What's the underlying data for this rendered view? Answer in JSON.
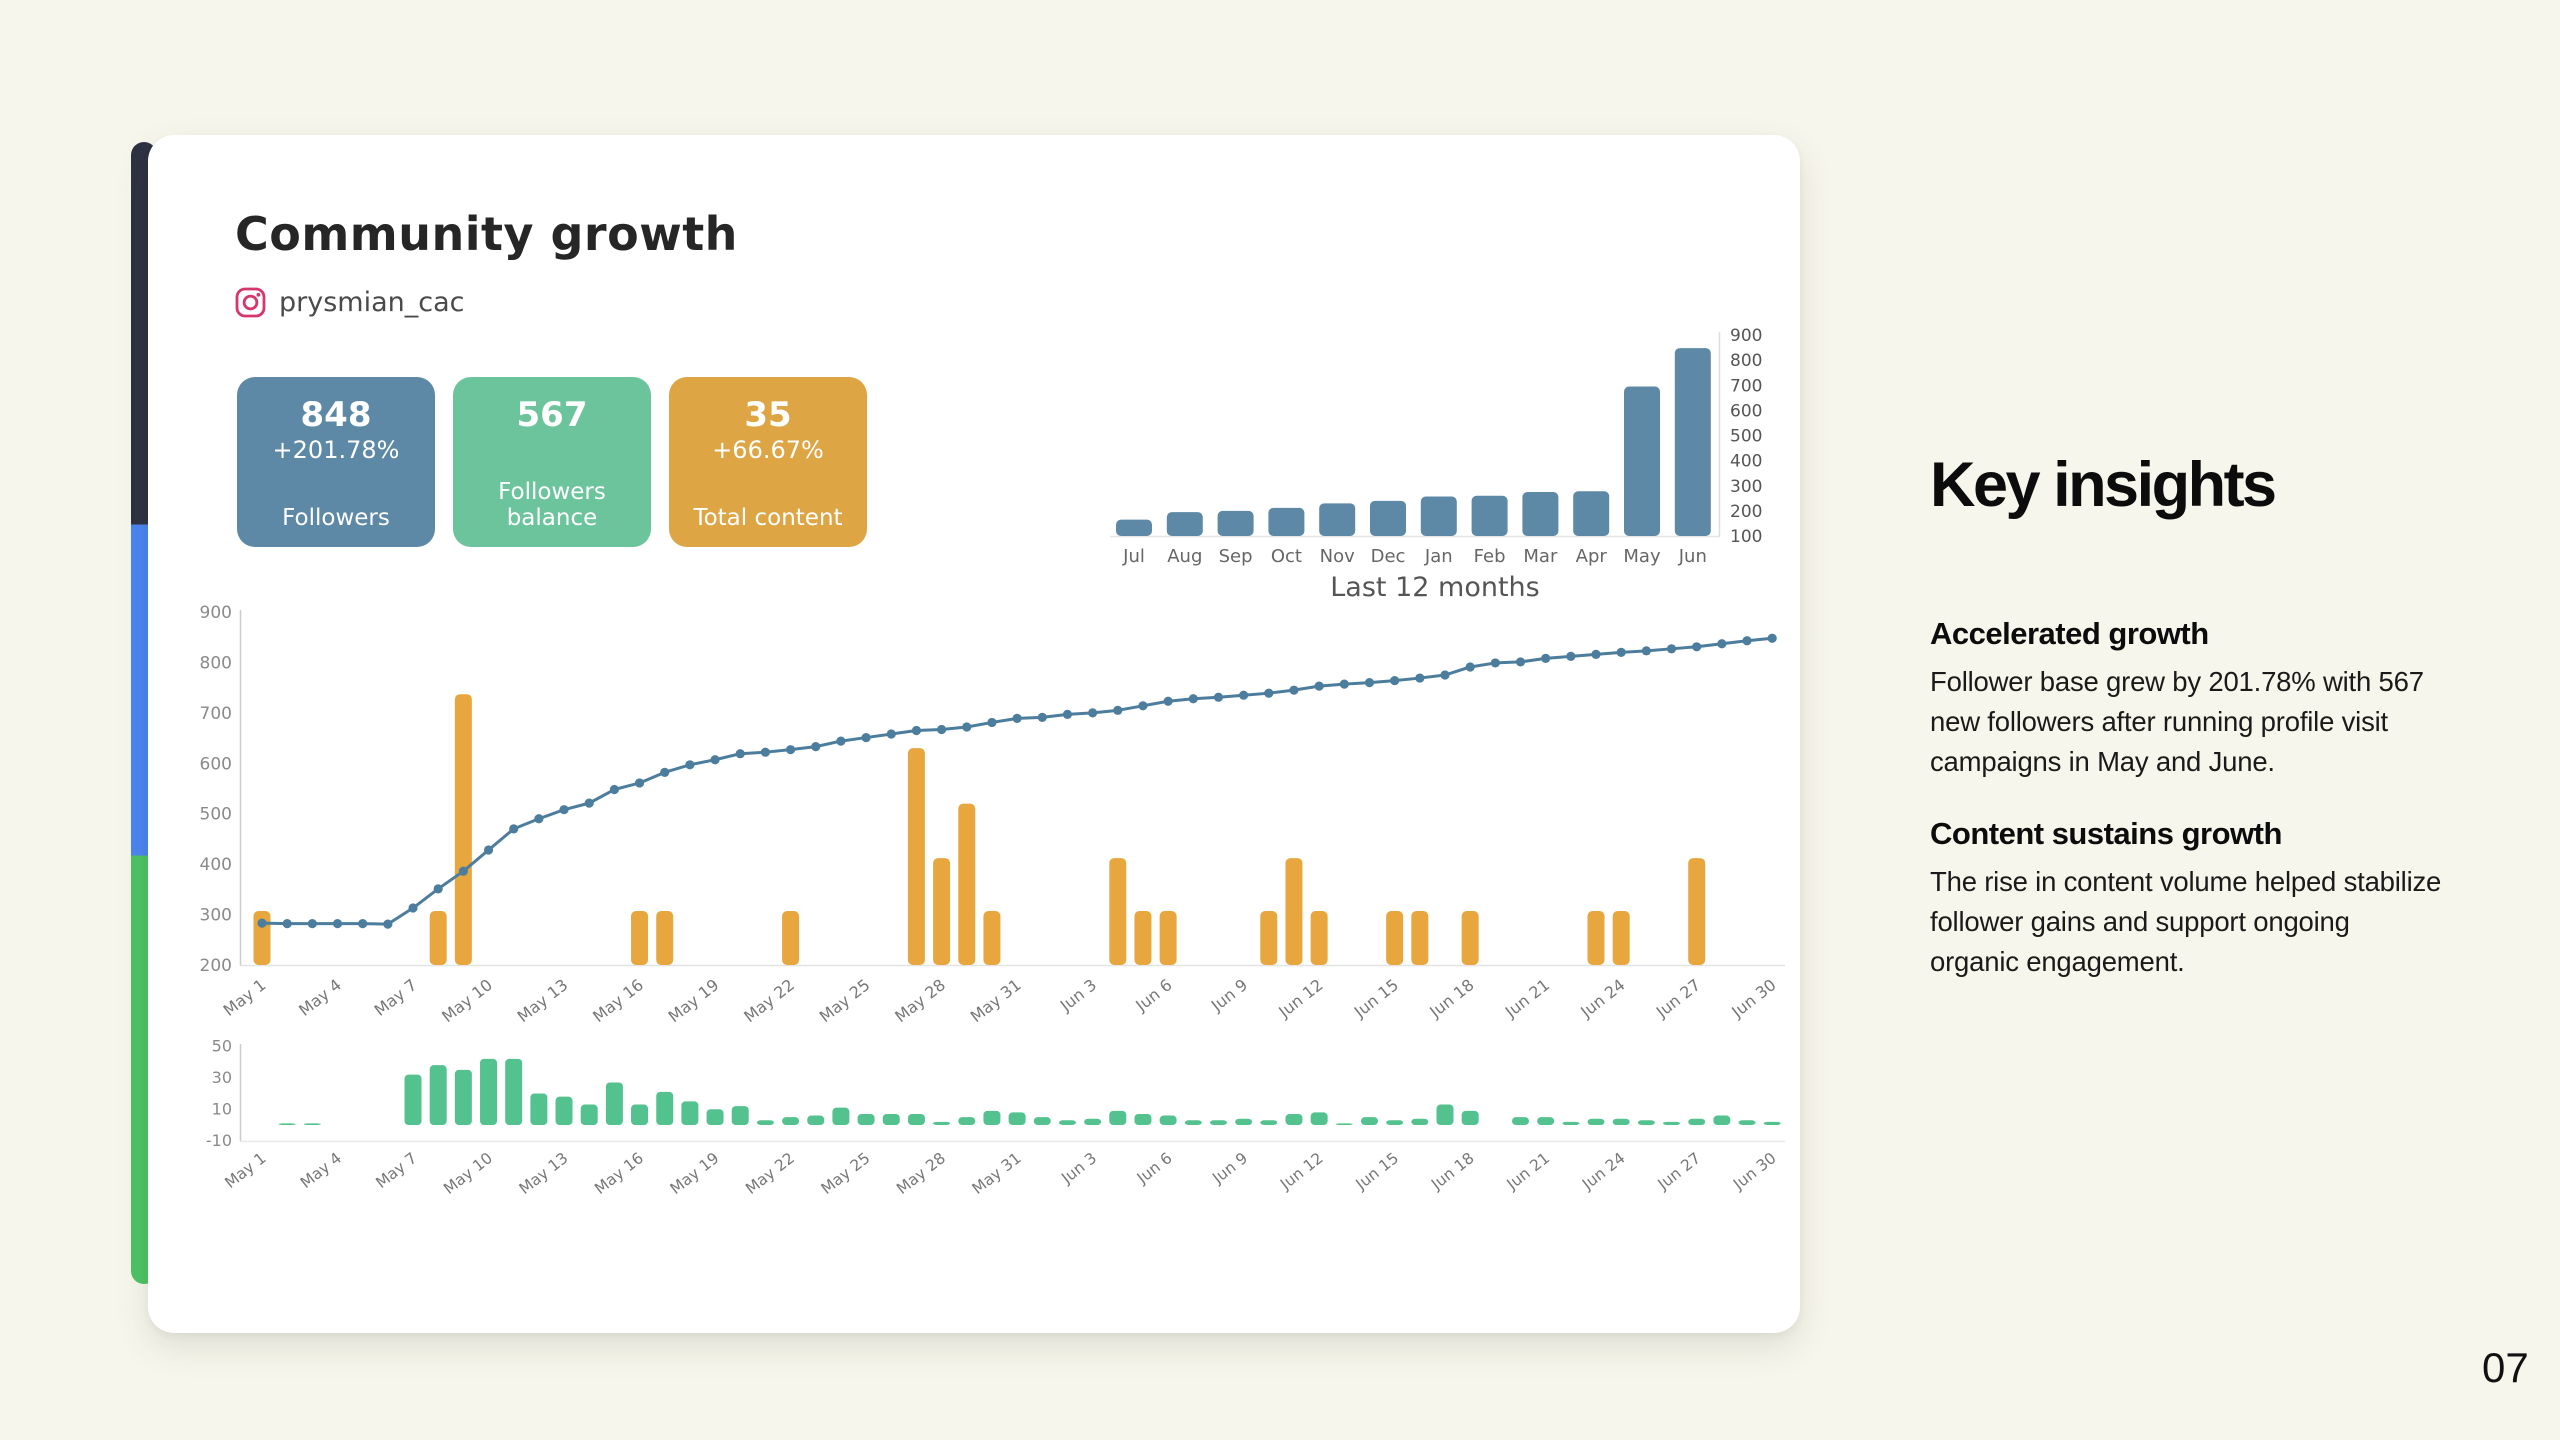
{
  "slide": {
    "background_color": "#f6f6ec",
    "page_number": "07",
    "accent_stripe_colors": [
      "#2d3142",
      "#4b85f2",
      "#4cc464"
    ]
  },
  "card": {
    "title": "Community growth",
    "account": {
      "icon": "instagram-icon",
      "icon_color": "#d6356d",
      "handle": "prysmian_cac"
    },
    "stats": [
      {
        "value": "848",
        "delta": "+201.78%",
        "label": "Followers",
        "color": "#5d89a6"
      },
      {
        "value": "567",
        "delta": "",
        "label": "Followers\nbalance",
        "color": "#6cc49c"
      },
      {
        "value": "35",
        "delta": "+66.67%",
        "label": "Total content",
        "color": "#dda544"
      }
    ]
  },
  "key_insights": {
    "title": "Key insights",
    "sections": [
      {
        "heading": "Accelerated growth",
        "body": "Follower base grew by 201.78% with 567\nnew followers after running profile visit\ncampaigns in May and June."
      },
      {
        "heading": "Content sustains growth",
        "body": "The rise in content volume helped stabilize\nfollower gains and support ongoing\norganic engagement."
      }
    ]
  },
  "chart_data": [
    {
      "id": "monthly_followers",
      "type": "bar",
      "title": "Last 12 months",
      "categories": [
        "Jul",
        "Aug",
        "Sep",
        "Oct",
        "Nov",
        "Dec",
        "Jan",
        "Feb",
        "Mar",
        "Apr",
        "May",
        "Jun"
      ],
      "values": [
        165,
        195,
        200,
        212,
        230,
        240,
        257,
        260,
        275,
        278,
        695,
        848
      ],
      "ylim": [
        100,
        900
      ],
      "yticks": [
        100,
        200,
        300,
        400,
        500,
        600,
        700,
        800,
        900
      ],
      "axis_side": "right",
      "bar_color": "#5d89a6",
      "grid": false
    },
    {
      "id": "daily_followers_and_content",
      "type": "line+bar",
      "x_start": "May 1",
      "x_end": "Jun 30",
      "x_tick_labels": [
        "May 1",
        "May 4",
        "May 7",
        "May 10",
        "May 13",
        "May 16",
        "May 19",
        "May 22",
        "May 25",
        "May 28",
        "May 31",
        "Jun 3",
        "Jun 6",
        "Jun 9",
        "Jun 12",
        "Jun 15",
        "Jun 18",
        "Jun 21",
        "Jun 24",
        "Jun 27",
        "Jun 30"
      ],
      "ylim": [
        200,
        900
      ],
      "yticks": [
        200,
        300,
        400,
        500,
        600,
        700,
        800,
        900
      ],
      "grid": false,
      "line": {
        "name": "Followers",
        "color": "#4c7d9d",
        "values": [
          283,
          282,
          282,
          282,
          282,
          281,
          313,
          351,
          386,
          428,
          470,
          490,
          508,
          521,
          548,
          561,
          582,
          597,
          607,
          619,
          622,
          627,
          633,
          644,
          651,
          658,
          665,
          667,
          672,
          681,
          689,
          691,
          697,
          700,
          705,
          714,
          723,
          728,
          731,
          735,
          739,
          745,
          753,
          757,
          760,
          764,
          769,
          775,
          791,
          799,
          801,
          808,
          812,
          816,
          820,
          823,
          827,
          831,
          837,
          843,
          848
        ]
      },
      "bars": {
        "name": "Content published",
        "color": "#e7a73e",
        "baseline": 200,
        "values": [
          307,
          0,
          0,
          0,
          0,
          0,
          0,
          307,
          737,
          0,
          0,
          0,
          0,
          0,
          0,
          307,
          307,
          0,
          0,
          0,
          0,
          307,
          0,
          0,
          0,
          0,
          630,
          412,
          520,
          307,
          0,
          0,
          0,
          0,
          412,
          307,
          307,
          0,
          0,
          0,
          307,
          412,
          307,
          0,
          0,
          307,
          307,
          0,
          307,
          0,
          0,
          0,
          0,
          307,
          307,
          0,
          0,
          412,
          0,
          0,
          0
        ]
      }
    },
    {
      "id": "daily_new_followers",
      "type": "bar",
      "x_tick_labels": [
        "May 1",
        "May 4",
        "May 7",
        "May 10",
        "May 13",
        "May 16",
        "May 19",
        "May 22",
        "May 25",
        "May 28",
        "May 31",
        "Jun 3",
        "Jun 6",
        "Jun 9",
        "Jun 12",
        "Jun 15",
        "Jun 18",
        "Jun 21",
        "Jun 24",
        "Jun 27",
        "Jun 30"
      ],
      "ylim": [
        -10,
        50
      ],
      "yticks": [
        50,
        30,
        10,
        -10
      ],
      "grid": false,
      "bar_color": "#54c28f",
      "values": [
        0,
        1,
        1,
        0,
        0,
        0,
        32,
        38,
        35,
        42,
        42,
        20,
        18,
        13,
        27,
        13,
        21,
        15,
        10,
        12,
        3,
        5,
        6,
        11,
        7,
        7,
        7,
        2,
        5,
        9,
        8,
        5,
        3,
        4,
        9,
        7,
        6,
        3,
        3,
        4,
        3,
        7,
        8,
        1,
        5,
        3,
        4,
        13,
        9,
        0,
        5,
        5,
        2,
        4,
        4,
        3,
        2,
        4,
        6,
        3,
        2
      ]
    }
  ]
}
